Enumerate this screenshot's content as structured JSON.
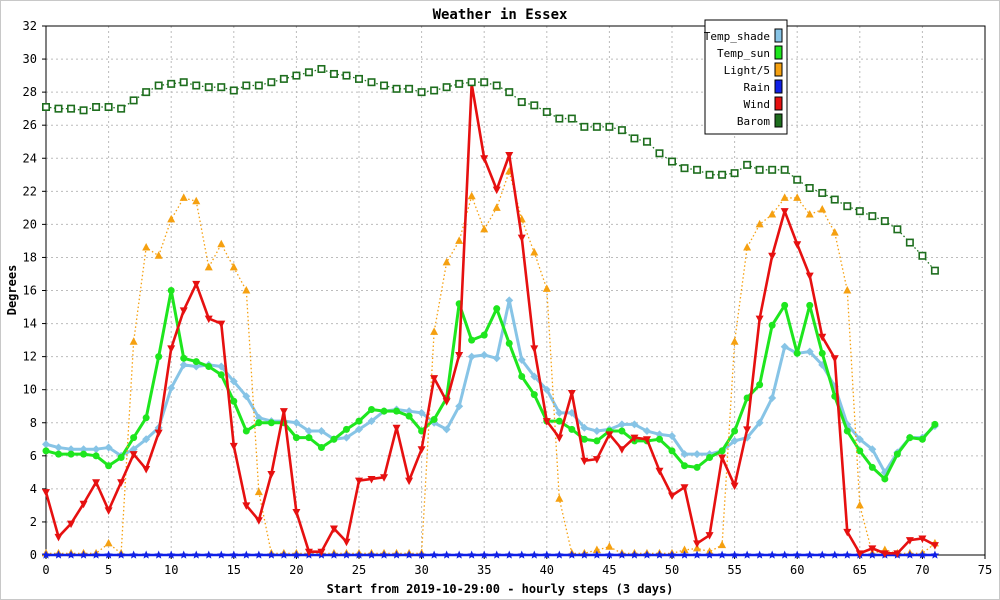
{
  "chart_data": {
    "type": "line",
    "title": "Weather in Essex",
    "xlabel": "Start from 2019-10-29:00 - hourly steps (3 days)",
    "ylabel": "Degrees",
    "xlim": [
      0,
      75
    ],
    "ylim": [
      0,
      32
    ],
    "xticks": [
      0,
      5,
      10,
      15,
      20,
      25,
      30,
      35,
      40,
      45,
      50,
      55,
      60,
      65,
      70,
      75
    ],
    "yticks": [
      0,
      2,
      4,
      6,
      8,
      10,
      12,
      14,
      16,
      18,
      20,
      22,
      24,
      26,
      28,
      30,
      32
    ],
    "grid": true,
    "legend_position": "top-right",
    "series": [
      {
        "name": "Temp_shade",
        "color": "#87c4e6",
        "marker": "diamond",
        "style": "solid",
        "values": [
          6.7,
          6.5,
          6.4,
          6.4,
          6.4,
          6.5,
          6.0,
          6.4,
          7.0,
          7.7,
          10.1,
          11.5,
          11.4,
          11.5,
          11.4,
          10.5,
          9.6,
          8.3,
          8.1,
          8.1,
          8.0,
          7.5,
          7.5,
          7.0,
          7.1,
          7.6,
          8.1,
          8.7,
          8.8,
          8.7,
          8.6,
          8.0,
          7.6,
          9.0,
          12.0,
          12.1,
          11.9,
          15.4,
          11.8,
          10.8,
          10.0,
          8.6,
          8.6,
          7.7,
          7.5,
          7.6,
          7.9,
          7.9,
          7.5,
          7.3,
          7.2,
          6.1,
          6.1,
          6.1,
          6.3,
          6.9,
          7.1,
          8.0,
          9.5,
          12.6,
          12.2,
          12.3,
          11.5,
          10.2,
          7.9,
          7.0,
          6.4,
          5.0,
          6.2,
          7.1,
          7.1,
          7.8
        ]
      },
      {
        "name": "Temp_sun",
        "color": "#1ee61e",
        "marker": "circle",
        "style": "solid",
        "values": [
          6.3,
          6.1,
          6.1,
          6.1,
          6.0,
          5.4,
          5.9,
          7.1,
          8.3,
          12.0,
          16.0,
          11.9,
          11.7,
          11.4,
          10.9,
          9.3,
          7.5,
          8.0,
          8.0,
          8.0,
          7.1,
          7.1,
          6.5,
          7.0,
          7.6,
          8.1,
          8.8,
          8.7,
          8.7,
          8.4,
          7.5,
          8.2,
          9.5,
          15.2,
          13.0,
          13.3,
          14.9,
          12.8,
          10.8,
          9.7,
          8.1,
          8.1,
          7.6,
          7.0,
          6.9,
          7.5,
          7.5,
          6.9,
          6.9,
          7.0,
          6.3,
          5.4,
          5.3,
          5.9,
          6.3,
          7.5,
          9.5,
          10.3,
          13.9,
          15.1,
          12.2,
          15.1,
          12.2,
          9.6,
          7.5,
          6.3,
          5.3,
          4.6,
          6.1,
          7.1,
          7.0,
          7.9
        ]
      },
      {
        "name": "Light/5",
        "color": "#f5a010",
        "marker": "triangle",
        "style": "dotted",
        "values": [
          0.1,
          0.1,
          0.1,
          0.1,
          0.1,
          0.7,
          0.1,
          12.9,
          18.6,
          18.1,
          20.3,
          21.6,
          21.4,
          17.4,
          18.8,
          17.4,
          16.0,
          3.8,
          0.1,
          0.1,
          0.1,
          0.1,
          0.1,
          0.1,
          0.1,
          0.1,
          0.1,
          0.1,
          0.1,
          0.1,
          0.1,
          13.5,
          17.7,
          19.0,
          21.7,
          19.7,
          21.0,
          23.2,
          20.3,
          18.3,
          16.1,
          3.4,
          0.1,
          0.1,
          0.3,
          0.5,
          0.1,
          0.1,
          0.1,
          0.1,
          0.1,
          0.3,
          0.4,
          0.2,
          0.6,
          12.9,
          18.6,
          20.0,
          20.6,
          21.6,
          21.6,
          20.6,
          20.9,
          19.5,
          16.0,
          3.0,
          0.1,
          0.3,
          0.1,
          0.1,
          0.1,
          0.7
        ]
      },
      {
        "name": "Rain",
        "color": "#1020e6",
        "marker": "star",
        "style": "solid",
        "values": [
          0,
          0,
          0,
          0,
          0,
          0,
          0,
          0,
          0,
          0,
          0,
          0,
          0,
          0,
          0,
          0,
          0,
          0,
          0,
          0,
          0,
          0,
          0,
          0,
          0,
          0,
          0,
          0,
          0,
          0,
          0,
          0,
          0,
          0,
          0,
          0,
          0,
          0,
          0,
          0,
          0,
          0,
          0,
          0,
          0,
          0,
          0,
          0,
          0,
          0,
          0,
          0,
          0,
          0,
          0,
          0,
          0,
          0,
          0,
          0,
          0,
          0,
          0,
          0,
          0,
          0,
          0,
          0,
          0,
          0,
          0,
          0
        ]
      },
      {
        "name": "Wind",
        "color": "#e61010",
        "marker": "down-triangle",
        "style": "solid",
        "values": [
          3.8,
          1.1,
          1.9,
          3.1,
          4.4,
          2.7,
          4.4,
          6.1,
          5.2,
          7.4,
          12.5,
          14.8,
          16.4,
          14.3,
          14.0,
          6.6,
          3.0,
          2.1,
          4.9,
          8.7,
          2.6,
          0.2,
          0.2,
          1.6,
          0.8,
          4.5,
          4.6,
          4.7,
          7.7,
          4.5,
          6.4,
          10.7,
          9.3,
          12.1,
          28.5,
          24.0,
          22.1,
          24.2,
          19.2,
          12.5,
          8.1,
          7.1,
          9.8,
          5.7,
          5.8,
          7.3,
          6.4,
          7.1,
          7.0,
          5.1,
          3.6,
          4.1,
          0.7,
          1.2,
          5.9,
          4.2,
          7.6,
          14.3,
          18.1,
          20.8,
          18.8,
          16.9,
          13.2,
          11.9,
          1.4,
          0.1,
          0.4,
          0.1,
          0.1,
          0.9,
          1.0,
          0.6
        ]
      },
      {
        "name": "Barom",
        "color": "#1e6e1e",
        "marker": "square-hollow",
        "style": "dotted",
        "values": [
          27.1,
          27.0,
          27.0,
          26.9,
          27.1,
          27.1,
          27.0,
          27.5,
          28.0,
          28.4,
          28.5,
          28.6,
          28.4,
          28.3,
          28.3,
          28.1,
          28.4,
          28.4,
          28.6,
          28.8,
          29.0,
          29.2,
          29.4,
          29.1,
          29.0,
          28.8,
          28.6,
          28.4,
          28.2,
          28.2,
          28.0,
          28.1,
          28.3,
          28.5,
          28.6,
          28.6,
          28.4,
          28.0,
          27.4,
          27.2,
          26.8,
          26.4,
          26.4,
          25.9,
          25.9,
          25.9,
          25.7,
          25.2,
          25.0,
          24.3,
          23.8,
          23.4,
          23.3,
          23.0,
          23.0,
          23.1,
          23.6,
          23.3,
          23.3,
          23.3,
          22.7,
          22.2,
          21.9,
          21.5,
          21.1,
          20.8,
          20.5,
          20.2,
          19.7,
          18.9,
          18.1,
          17.2
        ]
      }
    ]
  }
}
